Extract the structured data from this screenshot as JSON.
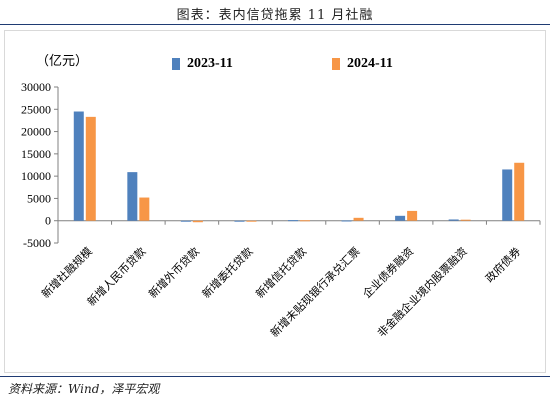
{
  "header": {
    "title": "图表：表内信贷拖累 11 月社融"
  },
  "footer": {
    "source": "资料来源：Wind，泽平宏观"
  },
  "chart_data": {
    "type": "bar",
    "unit_label": "（亿元）",
    "categories": [
      "新增社融规模",
      "新增人民币贷款",
      "新增外币贷款",
      "新增委托贷款",
      "新增信托贷款",
      "新增未贴现银行承兑汇票",
      "企业债券融资",
      "非金融企业境内股票融资",
      "政府债券"
    ],
    "series": [
      {
        "name": "2023-11",
        "color": "#4f81bd",
        "values": [
          24500,
          10900,
          -160,
          -190,
          130,
          50,
          1100,
          280,
          11500
        ]
      },
      {
        "name": "2024-11",
        "color": "#f79646",
        "values": [
          23300,
          5200,
          -340,
          -60,
          100,
          650,
          2200,
          230,
          13000
        ]
      }
    ],
    "y_ticks": [
      -5000,
      0,
      5000,
      10000,
      15000,
      20000,
      25000,
      30000
    ],
    "ylim": [
      -5000,
      30000
    ],
    "grid": false,
    "legend_position": "top"
  }
}
